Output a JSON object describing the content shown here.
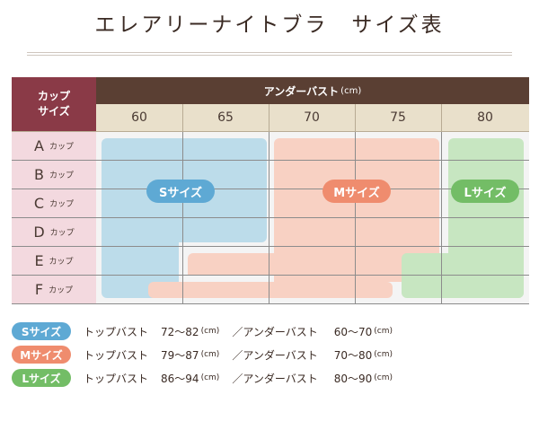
{
  "title": "エレアリーナイトブラ　サイズ表",
  "corner": {
    "line1": "カップ",
    "line2": "サイズ"
  },
  "header": {
    "label": "アンダーバスト",
    "unit": "(cm)"
  },
  "bands": [
    "60",
    "65",
    "70",
    "75",
    "80"
  ],
  "cups": [
    {
      "letter": "A",
      "sub": "カップ"
    },
    {
      "letter": "B",
      "sub": "カップ"
    },
    {
      "letter": "C",
      "sub": "カップ"
    },
    {
      "letter": "D",
      "sub": "カップ"
    },
    {
      "letter": "E",
      "sub": "カップ"
    },
    {
      "letter": "F",
      "sub": "カップ"
    }
  ],
  "pills": {
    "s": "Sサイズ",
    "m": "Mサイズ",
    "l": "Lサイズ"
  },
  "legend": [
    {
      "tag": "Sサイズ",
      "top_label": "トップバスト",
      "top_value": "72～82",
      "top_unit": "(cm)",
      "under_label": "／アンダーバスト",
      "under_value": "60～70",
      "under_unit": "(cm)"
    },
    {
      "tag": "Mサイズ",
      "top_label": "トップバスト",
      "top_value": "79～87",
      "top_unit": "(cm)",
      "under_label": "／アンダーバスト",
      "under_value": "70～80",
      "under_unit": "(cm)"
    },
    {
      "tag": "Lサイズ",
      "top_label": "トップバスト",
      "top_value": "86～94",
      "top_unit": "(cm)",
      "under_label": "／アンダーバスト",
      "under_value": "80～90",
      "under_unit": "(cm)"
    }
  ],
  "colors": {
    "s": "#5ea9d4",
    "m": "#ef8c6e",
    "l": "#73bd66",
    "corner": "#8a3a47",
    "header": "#5a3f33"
  }
}
